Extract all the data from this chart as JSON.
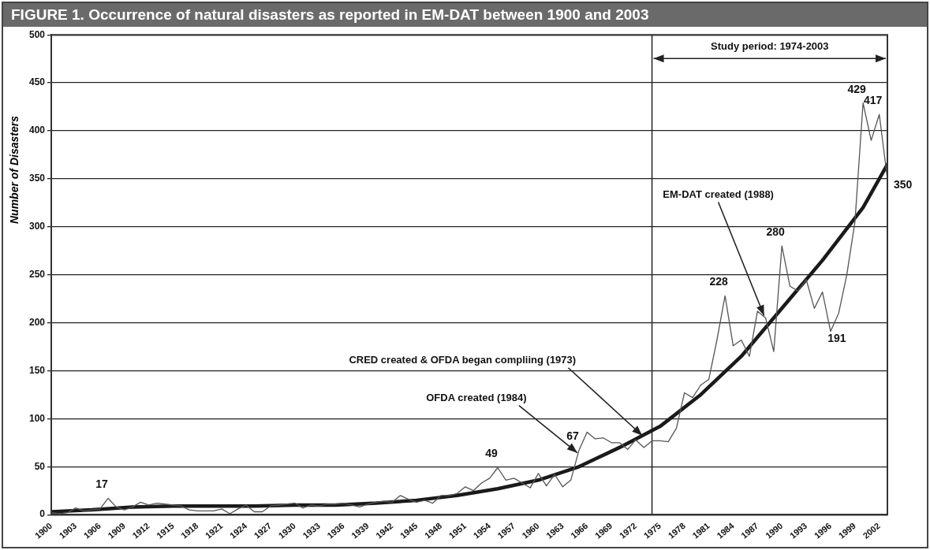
{
  "chart_data": {
    "type": "line",
    "title": "FIGURE 1. Occurrence of natural disasters as reported in EM-DAT between 1900 and 2003",
    "ylabel": "Number of Disasters",
    "x": [
      1900,
      1901,
      1902,
      1903,
      1904,
      1905,
      1906,
      1907,
      1908,
      1909,
      1910,
      1911,
      1912,
      1913,
      1914,
      1915,
      1916,
      1917,
      1918,
      1919,
      1920,
      1921,
      1922,
      1923,
      1924,
      1925,
      1926,
      1927,
      1928,
      1929,
      1930,
      1931,
      1932,
      1933,
      1934,
      1935,
      1936,
      1937,
      1938,
      1939,
      1940,
      1941,
      1942,
      1943,
      1944,
      1945,
      1946,
      1947,
      1948,
      1949,
      1950,
      1951,
      1952,
      1953,
      1954,
      1955,
      1956,
      1957,
      1958,
      1959,
      1960,
      1961,
      1962,
      1963,
      1964,
      1965,
      1966,
      1967,
      1968,
      1969,
      1970,
      1971,
      1972,
      1973,
      1974,
      1975,
      1976,
      1977,
      1978,
      1979,
      1980,
      1981,
      1982,
      1983,
      1984,
      1985,
      1986,
      1987,
      1988,
      1989,
      1990,
      1991,
      1992,
      1993,
      1994,
      1995,
      1996,
      1997,
      1998,
      1999,
      2000,
      2001,
      2002,
      2003
    ],
    "series": [
      {
        "color": "#555555",
        "values": [
          2,
          1,
          2,
          7,
          4,
          5,
          6,
          17,
          8,
          5,
          8,
          13,
          10,
          12,
          11,
          10,
          9,
          5,
          4,
          4,
          4,
          6,
          1,
          6,
          10,
          3,
          3,
          9,
          10,
          11,
          12,
          7,
          10,
          9,
          11,
          11,
          12,
          10,
          8,
          11,
          13,
          14,
          13,
          20,
          16,
          13,
          15,
          12,
          20,
          20,
          22,
          29,
          25,
          33,
          38,
          49,
          36,
          38,
          33,
          28,
          43,
          30,
          42,
          29,
          36,
          67,
          86,
          79,
          80,
          75,
          75,
          68,
          78,
          70,
          77,
          77,
          76,
          90,
          127,
          122,
          135,
          141,
          182,
          228,
          176,
          182,
          165,
          212,
          205,
          170,
          280,
          238,
          233,
          245,
          215,
          232,
          191,
          210,
          250,
          305,
          429,
          390,
          417,
          350
        ],
        "value_labels": [
          null,
          null,
          null,
          null,
          null,
          null,
          null,
          "17",
          null,
          null,
          null,
          null,
          null,
          null,
          null,
          null,
          null,
          null,
          null,
          null,
          null,
          null,
          null,
          null,
          null,
          null,
          null,
          null,
          null,
          null,
          null,
          null,
          null,
          null,
          null,
          null,
          null,
          null,
          null,
          null,
          null,
          null,
          null,
          null,
          null,
          null,
          null,
          null,
          null,
          null,
          null,
          null,
          null,
          null,
          null,
          "49",
          null,
          null,
          null,
          null,
          null,
          null,
          null,
          null,
          null,
          "67",
          null,
          null,
          null,
          null,
          null,
          null,
          null,
          null,
          null,
          null,
          null,
          null,
          null,
          null,
          null,
          null,
          null,
          "228",
          null,
          null,
          null,
          null,
          null,
          null,
          "280",
          null,
          null,
          null,
          null,
          null,
          "191",
          null,
          null,
          null,
          "429",
          null,
          "417",
          "350"
        ]
      },
      {
        "color": "#1a1a1a",
        "x": [
          1900,
          1905,
          1910,
          1915,
          1920,
          1925,
          1930,
          1935,
          1940,
          1945,
          1950,
          1955,
          1960,
          1965,
          1970,
          1975,
          1980,
          1985,
          1990,
          1995,
          2000,
          2003
        ],
        "values": [
          3,
          5,
          8,
          9,
          9,
          9,
          10,
          10,
          12,
          15,
          20,
          27,
          36,
          50,
          70,
          92,
          125,
          165,
          215,
          265,
          320,
          365
        ]
      }
    ],
    "xlim": [
      1900,
      2003
    ],
    "xticks": [
      1900,
      1903,
      1906,
      1909,
      1912,
      1915,
      1918,
      1921,
      1924,
      1927,
      1930,
      1933,
      1936,
      1939,
      1942,
      1945,
      1948,
      1951,
      1954,
      1957,
      1960,
      1963,
      1966,
      1969,
      1972,
      1975,
      1978,
      1981,
      1984,
      1987,
      1990,
      1993,
      1996,
      1999,
      2002
    ],
    "ylim": [
      0,
      500
    ],
    "yticks": [
      0,
      50,
      100,
      150,
      200,
      250,
      300,
      350,
      400,
      450,
      500
    ],
    "grid": "y",
    "legend": false,
    "marker": "none",
    "line_style": "solid",
    "ref_lines": [
      {
        "axis": "x",
        "value": 1974,
        "color": "#222222"
      }
    ],
    "annotations": [
      "Study period: 1974-2003",
      {
        "text": "CRED created & OFDA began compliing (1973)",
        "x": 1973,
        "y": 80
      },
      {
        "text": "OFDA created (1984)",
        "x": 1965,
        "y": 62
      },
      {
        "text": "EM-DAT created (1988)",
        "x": 1988,
        "y": 205
      }
    ]
  }
}
